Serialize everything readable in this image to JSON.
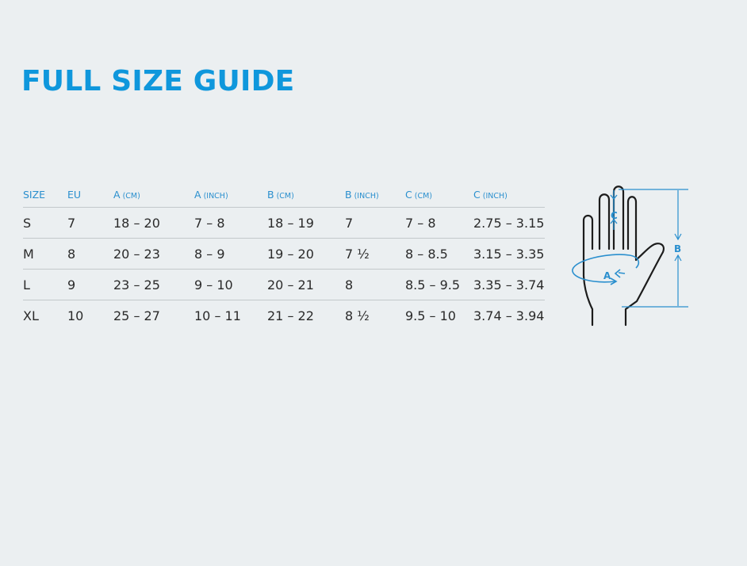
{
  "title": "FULL SIZE GUIDE",
  "colors": {
    "accent": "#0f97dc",
    "background": "#ebeff1",
    "text": "#2a2a2a",
    "rule": "#c3c8cb"
  },
  "table": {
    "headers": [
      {
        "label": "SIZE",
        "unit": ""
      },
      {
        "label": "EU",
        "unit": ""
      },
      {
        "label": "A",
        "unit": "(CM)"
      },
      {
        "label": "A",
        "unit": "(INCH)"
      },
      {
        "label": "B",
        "unit": "(CM)"
      },
      {
        "label": "B",
        "unit": "(INCH)"
      },
      {
        "label": "C",
        "unit": "(CM)"
      },
      {
        "label": "C",
        "unit": "(INCH)"
      }
    ],
    "rows": [
      [
        "S",
        "7",
        "18 – 20",
        "7 – 8",
        "18 – 19",
        "7",
        "7 – 8",
        "2.75  – 3.15"
      ],
      [
        "M",
        "8",
        "20 – 23",
        "8 – 9",
        "19 – 20",
        "7 ½",
        "8 – 8.5",
        "3.15  – 3.35"
      ],
      [
        "L",
        "9",
        "23 – 25",
        "9 – 10",
        "20 – 21",
        "8",
        "8.5 – 9.5",
        "3.35  – 3.74"
      ],
      [
        "XL",
        "10",
        "25 – 27",
        "10 – 11",
        "21 – 22",
        "8 ½",
        "9.5 – 10",
        "3.74  – 3.94"
      ]
    ]
  },
  "diagram": {
    "label_a": "A",
    "label_b": "B",
    "label_c": "C",
    "icon": "hand-measurement-icon"
  }
}
